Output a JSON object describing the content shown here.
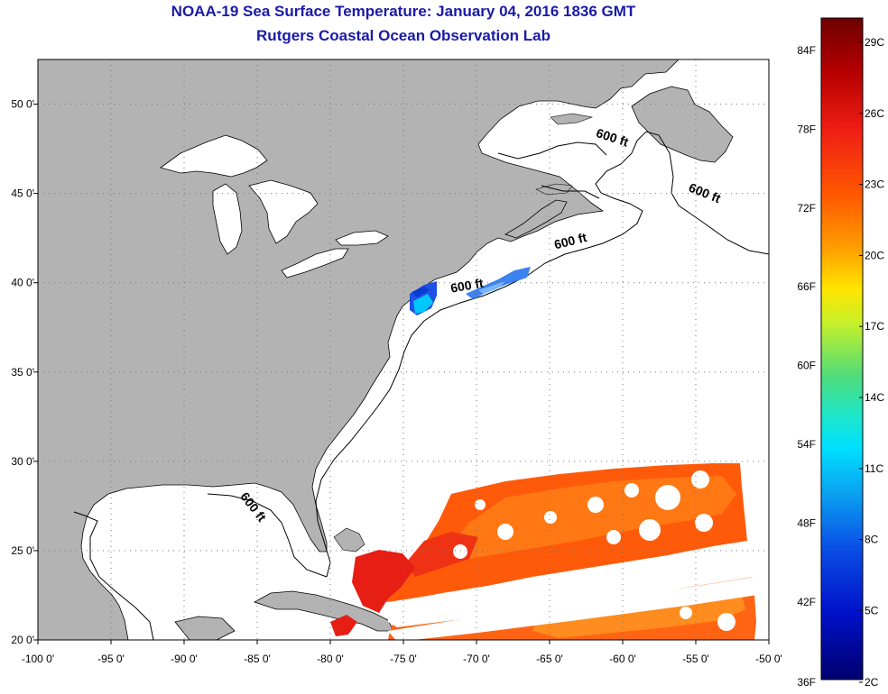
{
  "title": "NOAA-19 Sea Surface Temperature:  January 04, 2016 1836 GMT",
  "subtitle": "Rutgers Coastal Ocean Observation Lab",
  "map": {
    "lon_range": [
      -100,
      -50
    ],
    "lat_range": [
      20,
      52.5
    ],
    "lon_ticks": [
      {
        "value": -100,
        "label": "-100 0'"
      },
      {
        "value": -95,
        "label": "-95 0'"
      },
      {
        "value": -90,
        "label": "-90 0'"
      },
      {
        "value": -85,
        "label": "-85 0'"
      },
      {
        "value": -80,
        "label": "-80 0'"
      },
      {
        "value": -75,
        "label": "-75 0'"
      },
      {
        "value": -70,
        "label": "-70 0'"
      },
      {
        "value": -65,
        "label": "-65 0'"
      },
      {
        "value": -60,
        "label": "-60 0'"
      },
      {
        "value": -55,
        "label": "-55 0'"
      },
      {
        "value": -50,
        "label": "-50 0'"
      }
    ],
    "lat_ticks": [
      {
        "value": 20,
        "label": "20 0'"
      },
      {
        "value": 25,
        "label": "25 0'"
      },
      {
        "value": 30,
        "label": "30 0'"
      },
      {
        "value": 35,
        "label": "35 0'"
      },
      {
        "value": 40,
        "label": "40 0'"
      },
      {
        "value": 45,
        "label": "45 0'"
      },
      {
        "value": 50,
        "label": "50 0'"
      }
    ],
    "land_color": "#b3b3b3",
    "ocean_color": "#ffffff",
    "contour_labels": [
      {
        "text": "600 ft",
        "lon": -60.8,
        "lat": 47.9,
        "rotate": 18
      },
      {
        "text": "600 ft",
        "lon": -54.5,
        "lat": 44.8,
        "rotate": 22
      },
      {
        "text": "600 ft",
        "lon": -63.5,
        "lat": 42.1,
        "rotate": -14
      },
      {
        "text": "600 ft",
        "lon": -70.6,
        "lat": 39.6,
        "rotate": -10
      },
      {
        "text": "600 ft",
        "lon": -85.5,
        "lat": 27.3,
        "rotate": 52
      }
    ]
  },
  "colorbar": {
    "f_labels": [
      "84F",
      "78F",
      "72F",
      "66F",
      "60F",
      "54F",
      "48F",
      "42F",
      "36F"
    ],
    "c_labels": [
      "29C",
      "26C",
      "23C",
      "20C",
      "17C",
      "14C",
      "11C",
      "8C",
      "5C",
      "2C"
    ],
    "colors": [
      "#7a0000",
      "#e01414",
      "#ff5a00",
      "#ffc800",
      "#dcff1e",
      "#28e6b4",
      "#00ddff",
      "#0a64f0",
      "#0000aa",
      "#000078"
    ]
  }
}
